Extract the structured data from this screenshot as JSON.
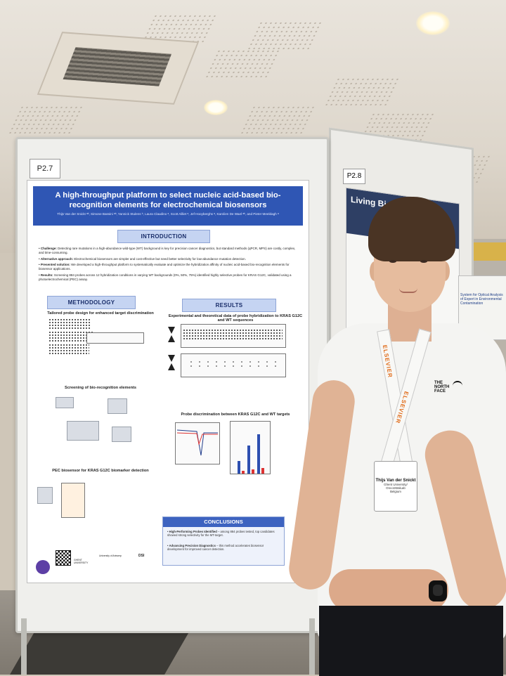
{
  "poster": {
    "tag": "P2.7",
    "title": "A high-throughput platform to select nucleic acid-based bio-recognition elements for electrochemical biosensors",
    "authors": "Thijs Van der Snickt ᵃᵇ, Simone Bassini ᵃᵇ, Yannick Stulens ᵇ, Laura Claudino ᵃ, Scott Ailliet ᵃ, Jef Hooyberghs ᵃ, Karolien De Wael ᵃᵇ, and Pieter Meeldagh ᵃ",
    "sections": {
      "introduction": "INTRODUCTION",
      "methodology": "METHODOLOGY",
      "results": "RESULTS",
      "conclusions": "CONCLUSIONS"
    },
    "intro_bullets": [
      {
        "label": "Challenge:",
        "text": "Detecting rare mutations in a high-abundance wild-type (WT) background is key for precision cancer diagnostics, but standard methods (qPCR, MPS) are costly, complex, and time-consuming."
      },
      {
        "label": "Alternative approach:",
        "text": "Electrochemical biosensors are simpler and cost-effective but need better selectivity for low-abundance mutation detection."
      },
      {
        "label": "Presented solution:",
        "text": "We developed a high-throughput platform to systematically evaluate and optimize the hybridization affinity of nucleic acid-based bio-recognition elements for biosensor applications."
      },
      {
        "label": "Results:",
        "text": "Screening 884 probes across 12 hybridization conditions in varying WT backgrounds (0%, 50%, 75%) identified highly selective probes for KRAS G12C, validated using a photoelectrochemical (PEC) assay."
      }
    ],
    "method_sub1": "Tailored probe design for enhanced target discrimination",
    "method_sub2": "Screening of bio-recognition elements",
    "method_sub3": "PEC biosensor for KRAS G12C biomarker detection",
    "results_sub1": "Experimental and theoretical data of probe hybridization to KRAS G12C and WT sequences",
    "results_sub2": "Probe discrimination between KRAS G12C and WT targets",
    "conclusion_items": [
      {
        "label": "High-Performing Probes Identified",
        "text": "– among 884 probes tested, top candidates showed strong selectivity for the MT-target."
      },
      {
        "label": "Advancing Precision Diagnostics",
        "text": "– this method accelerates biosensor development for improved cancer detection."
      }
    ],
    "logos": [
      "University of Antwerp",
      "GHENT UNIVERSITY",
      "DSI"
    ]
  },
  "right_board": {
    "tag": "P2.8",
    "title": "Living Biosens"
  },
  "far_poster_title": "System for Optical Analysis of Expert in Environmental Contamination",
  "person": {
    "badge_name": "Thijs Van der Snickt",
    "badge_lines": [
      "Ghent University/",
      "OnconWalLab",
      "Belgium"
    ],
    "lanyard_text": "ELSEVIER",
    "shirt_brand": [
      "THE",
      "NORTH",
      "FACE"
    ]
  }
}
